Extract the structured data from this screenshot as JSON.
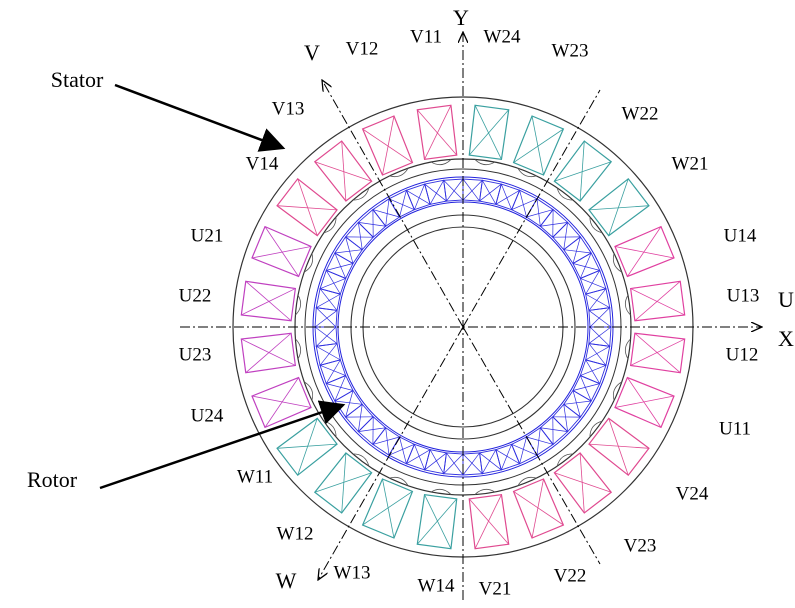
{
  "labels": {
    "stator": "Stator",
    "rotor": "Rotor"
  },
  "axes": {
    "y": "Y",
    "v": "V",
    "u": "U",
    "x": "X",
    "w": "W"
  },
  "slots": [
    "V11",
    "W24",
    "V12",
    "W23",
    "V13",
    "W22",
    "V14",
    "W21",
    "U21",
    "U14",
    "U22",
    "U13",
    "U23",
    "U12",
    "U24",
    "U11",
    "W11",
    "V24",
    "W12",
    "V23",
    "W13",
    "V22",
    "W14",
    "V21"
  ]
}
